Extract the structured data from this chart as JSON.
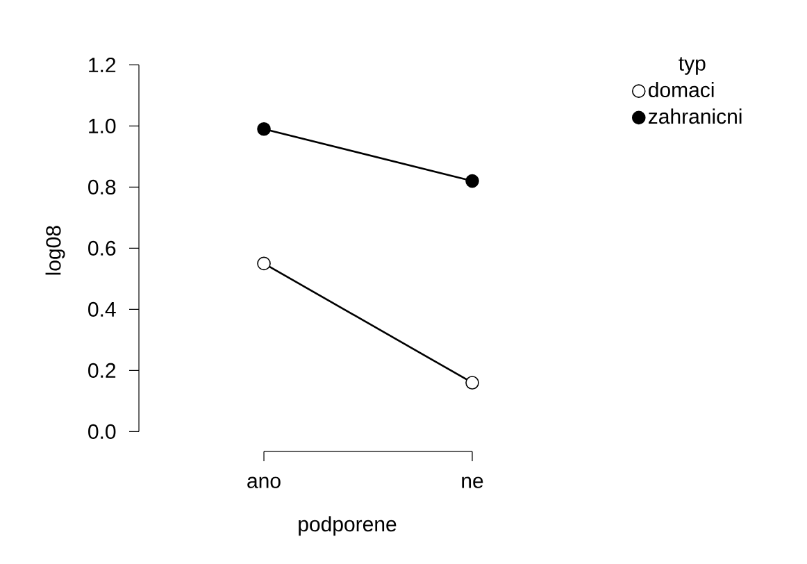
{
  "chart_data": {
    "type": "line",
    "xlabel": "podporene",
    "ylabel": "log08",
    "legend_title": "typ",
    "categories": [
      "ano",
      "ne"
    ],
    "series": [
      {
        "name": "domaci",
        "color": "#ffffff",
        "values": [
          0.55,
          0.16
        ]
      },
      {
        "name": "zahranicni",
        "color": "#000000",
        "values": [
          0.99,
          0.82
        ]
      }
    ],
    "ylim": [
      0,
      1.2
    ],
    "yticks": [
      {
        "value": 0,
        "label": "0.0"
      },
      {
        "value": 0.2,
        "label": "0.2"
      },
      {
        "value": 0.4,
        "label": "0.4"
      },
      {
        "value": 0.6,
        "label": "0.6"
      },
      {
        "value": 0.8,
        "label": "0.8"
      },
      {
        "value": 1.0,
        "label": "1.0"
      },
      {
        "value": 1.2,
        "label": "1.2"
      }
    ],
    "legend": "top right",
    "marker": "circle",
    "line_style": "solid",
    "grid": false
  }
}
